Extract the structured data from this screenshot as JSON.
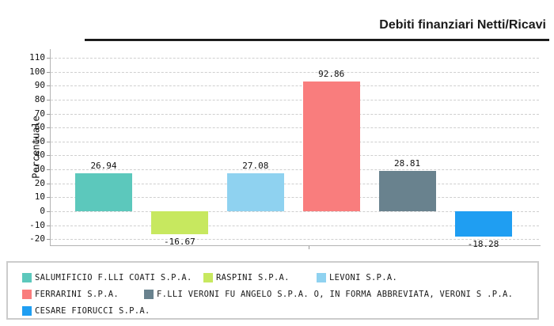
{
  "title": "Debiti finanziari Netti/Ricavi",
  "chart_data": {
    "type": "bar",
    "title": "Debiti finanziari Netti/Ricavi",
    "xlabel": "",
    "ylabel": "Percentuale",
    "ylim": [
      -20,
      110
    ],
    "ytick_step": 10,
    "grid": "horizontal-dashed",
    "legend_position": "bottom-box",
    "series": [
      {
        "name": "SALUMIFICIO F.LLI COATI S.P.A.",
        "value": 26.94,
        "value_label": "26.94",
        "color": "#5cc8bc"
      },
      {
        "name": "RASPINI S.P.A.",
        "value": -16.67,
        "value_label": "-16.67",
        "color": "#c7e85f"
      },
      {
        "name": "LEVONI S.P.A.",
        "value": 27.08,
        "value_label": "27.08",
        "color": "#8fd2f0"
      },
      {
        "name": "FERRARINI S.P.A.",
        "value": 92.86,
        "value_label": "92.86",
        "color": "#f97d7d"
      },
      {
        "name": "F.LLI VERONI FU ANGELO S.P.A. O, IN FORMA ABBREVIATA, VERONI S .P.A.",
        "value": 28.81,
        "value_label": "28.81",
        "color": "#69828e"
      },
      {
        "name": "CESARE FIORUCCI S.P.A.",
        "value": -18.28,
        "value_label": "-18.28",
        "color": "#1f9ef2"
      }
    ]
  },
  "colors": {
    "grid": "#cfcfcf",
    "axis": "#b3b3b3",
    "text": "#111111",
    "legend_border": "#cccccc"
  }
}
